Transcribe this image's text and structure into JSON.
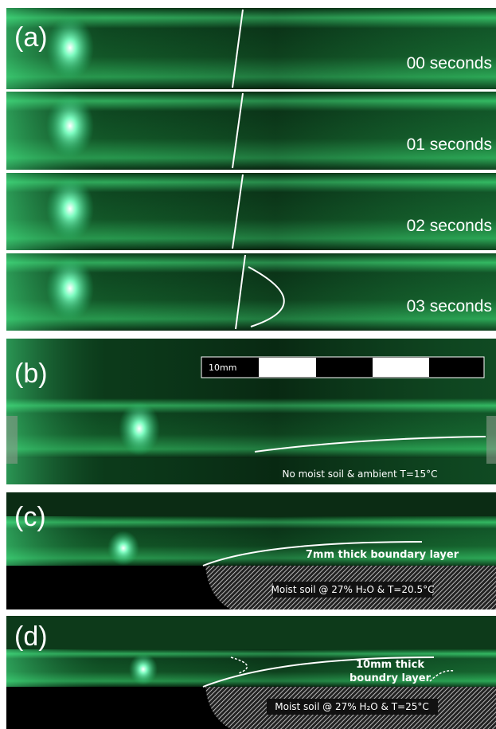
{
  "panels": [
    {
      "label": "(a)",
      "frames": [
        "00 seconds",
        "01 seconds",
        "02 seconds",
        "03 seconds"
      ]
    },
    {
      "label": "(b)",
      "scale_label": "10mm",
      "caption": "No moist soil & ambient T=15°C"
    },
    {
      "label": "(c)",
      "layer_label": "7mm thick boundary layer",
      "soil_label": "Moist soil @ 27% H₂O & T=20.5°C"
    },
    {
      "label": "(d)",
      "layer_label": [
        "10mm thick",
        "boundry layer"
      ],
      "soil_label": "Moist soil @ 27% H₂O & T=25°C"
    }
  ]
}
